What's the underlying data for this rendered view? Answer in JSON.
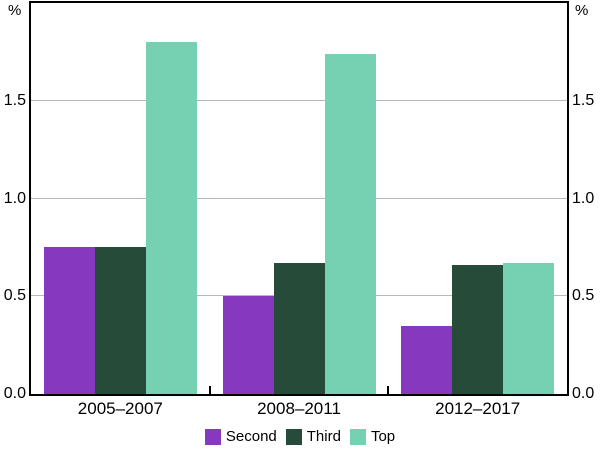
{
  "chart_data": {
    "type": "bar",
    "unit_label_left": "%",
    "unit_label_right": "%",
    "categories": [
      "2005–2007",
      "2008–2011",
      "2012–2017"
    ],
    "series": [
      {
        "name": "Second",
        "color": "#8639BE",
        "values": [
          0.75,
          0.5,
          0.35
        ]
      },
      {
        "name": "Third",
        "color": "#264B38",
        "values": [
          0.75,
          0.67,
          0.66
        ]
      },
      {
        "name": "Top",
        "color": "#76D1B3",
        "values": [
          1.8,
          1.74,
          0.67
        ]
      }
    ],
    "ylim": [
      0,
      2.0
    ],
    "yticks": [
      0.0,
      0.5,
      1.0,
      1.5
    ],
    "ytick_labels": [
      "0.0",
      "0.5",
      "1.0",
      "1.5"
    ],
    "grid": "horizontal",
    "legend_position": "bottom",
    "colors": {
      "axis": "#000000",
      "gridline": "#b8b8b8",
      "background": "#ffffff",
      "text": "#000000"
    }
  }
}
